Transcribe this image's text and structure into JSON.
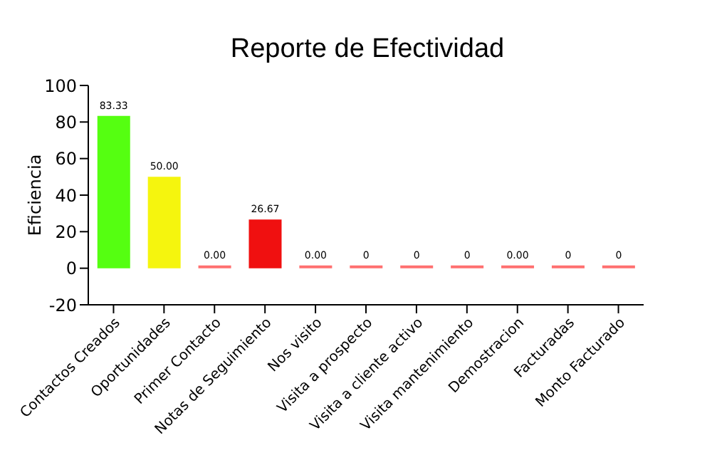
{
  "chart_data": {
    "type": "bar",
    "title": "Reporte de Efectividad",
    "ylabel": "Eficiencia",
    "categories": [
      "Contactos Creados",
      "Oportunidades",
      "Primer Contacto",
      "Notas de Seguimiento",
      "Nos visito",
      "Visita a prospecto",
      "Visita a cliente activo",
      "Visita mantenimiento",
      "Demostracion",
      "Facturadas",
      "Monto Facturado"
    ],
    "values": [
      83.33,
      50,
      0,
      26.67,
      0,
      0,
      0,
      0,
      0,
      0,
      0
    ],
    "colors": [
      "#55ff11",
      "#f5f50e",
      "#ff7070",
      "#f01010",
      "#ff7070",
      "#ff7070",
      "#ff7070",
      "#ff7070",
      "#ff7070",
      "#ff7070",
      "#ff7070"
    ],
    "value_labels": [
      "83.33",
      "50.00",
      "0.00",
      "26.67",
      "0.00",
      "0",
      "0",
      "0",
      "0.00",
      "0",
      "0"
    ],
    "ylim": [
      -20,
      100
    ],
    "yticks": [
      -20,
      0,
      20,
      40,
      60,
      80,
      100
    ]
  }
}
